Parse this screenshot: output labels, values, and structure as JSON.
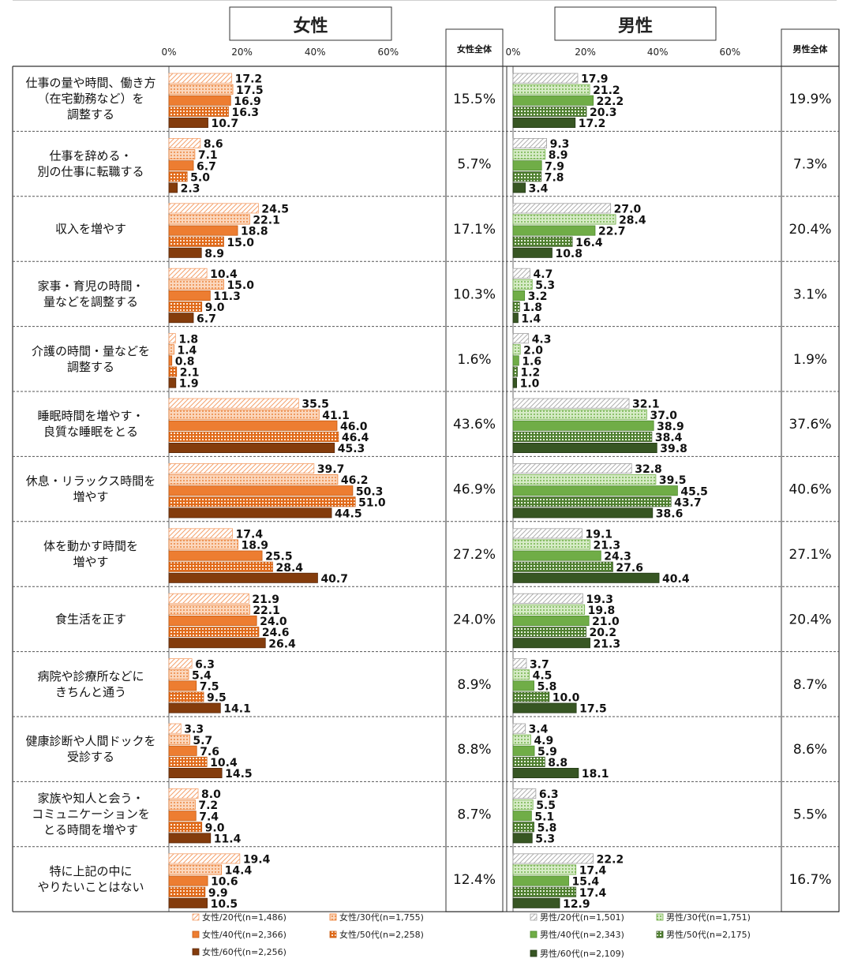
{
  "chart_data": {
    "type": "bar",
    "orientation": "horizontal",
    "panels": [
      {
        "title": "女性",
        "total_header": "女性全体",
        "xticks": [
          "0%",
          "20%",
          "40%",
          "60%"
        ],
        "xlim": [
          0,
          60
        ],
        "series": [
          {
            "name": "女性/20代(n=1,486)",
            "color": "#ffffff",
            "pattern": "diagonal",
            "values": [
              17.2,
              8.6,
              24.5,
              10.4,
              1.8,
              35.5,
              39.7,
              17.4,
              21.9,
              6.3,
              3.3,
              8.0,
              19.4
            ]
          },
          {
            "name": "女性/30代(n=1,755)",
            "color": "#f4b183",
            "pattern": "dots",
            "values": [
              17.5,
              7.1,
              22.1,
              15.0,
              1.4,
              41.1,
              46.2,
              18.9,
              22.1,
              5.4,
              5.7,
              7.2,
              14.4
            ]
          },
          {
            "name": "女性/40代(n=2,366)",
            "color": "#ed7d31",
            "pattern": "solid",
            "values": [
              16.9,
              6.7,
              18.8,
              11.3,
              0.8,
              46.0,
              50.3,
              25.5,
              24.0,
              7.5,
              7.6,
              7.4,
              10.6
            ]
          },
          {
            "name": "女性/50代(n=2,258)",
            "color": "#e07020",
            "pattern": "checker",
            "values": [
              16.3,
              5.0,
              15.0,
              9.0,
              2.1,
              46.4,
              51.0,
              28.4,
              24.6,
              9.5,
              10.4,
              9.0,
              9.9
            ]
          },
          {
            "name": "女性/60代(n=2,256)",
            "color": "#843c0c",
            "pattern": "solid",
            "values": [
              10.7,
              2.3,
              8.9,
              6.7,
              1.9,
              45.3,
              44.5,
              40.7,
              26.4,
              14.1,
              14.5,
              11.4,
              10.5
            ]
          }
        ],
        "totals": [
          "15.5%",
          "5.7%",
          "17.1%",
          "10.3%",
          "1.6%",
          "43.6%",
          "46.9%",
          "27.2%",
          "24.0%",
          "8.9%",
          "8.8%",
          "8.7%",
          "12.4%"
        ]
      },
      {
        "title": "男性",
        "total_header": "男性全体",
        "xticks": [
          "0%",
          "20%",
          "40%",
          "60%"
        ],
        "xlim": [
          0,
          60
        ],
        "series": [
          {
            "name": "男性/20代(n=1,501)",
            "color": "#ffffff",
            "pattern": "diagonal",
            "values": [
              17.9,
              9.3,
              27.0,
              4.7,
              4.3,
              32.1,
              32.8,
              19.1,
              19.3,
              3.7,
              3.4,
              6.3,
              22.2
            ]
          },
          {
            "name": "男性/30代(n=1,751)",
            "color": "#a9d18e",
            "pattern": "dots",
            "values": [
              21.2,
              8.9,
              28.4,
              5.3,
              2.0,
              37.0,
              39.5,
              21.3,
              19.8,
              4.5,
              4.9,
              5.5,
              17.4
            ]
          },
          {
            "name": "男性/40代(n=2,343)",
            "color": "#70ad47",
            "pattern": "solid",
            "values": [
              22.2,
              7.9,
              22.7,
              3.2,
              1.6,
              38.9,
              45.5,
              24.3,
              21.0,
              5.8,
              5.9,
              5.1,
              15.4
            ]
          },
          {
            "name": "男性/50代(n=2,175)",
            "color": "#548235",
            "pattern": "checker",
            "values": [
              20.3,
              7.8,
              16.4,
              1.8,
              1.2,
              38.4,
              43.7,
              27.6,
              20.2,
              10.0,
              8.8,
              5.8,
              17.4
            ]
          },
          {
            "name": "男性/60代(n=2,109)",
            "color": "#375623",
            "pattern": "solid",
            "values": [
              17.2,
              3.4,
              10.8,
              1.4,
              1.0,
              39.8,
              38.6,
              40.4,
              21.3,
              17.5,
              18.1,
              5.3,
              12.9
            ]
          }
        ],
        "totals": [
          "19.9%",
          "7.3%",
          "20.4%",
          "3.1%",
          "1.9%",
          "37.6%",
          "40.6%",
          "27.1%",
          "20.4%",
          "8.7%",
          "8.6%",
          "5.5%",
          "16.7%"
        ]
      }
    ],
    "categories": [
      [
        "仕事の量や時間、働き方",
        "（在宅勤務など）を",
        "調整する"
      ],
      [
        "仕事を辞める・",
        "別の仕事に転職する"
      ],
      [
        "収入を増やす"
      ],
      [
        "家事・育児の時間・",
        "量などを調整する"
      ],
      [
        "介護の時間・量などを",
        "調整する"
      ],
      [
        "睡眠時間を増やす・",
        "良質な睡眠をとる"
      ],
      [
        "休息・リラックス時間を",
        "増やす"
      ],
      [
        "体を動かす時間を",
        "増やす"
      ],
      [
        "食生活を正す"
      ],
      [
        "病院や診療所などに",
        "きちんと通う"
      ],
      [
        "健康診断や人間ドックを",
        "受診する"
      ],
      [
        "家族や知人と会う・",
        "コミュニケーションを",
        "とる時間を増やす"
      ],
      [
        "特に上記の中に",
        "やりたいことはない"
      ]
    ],
    "legend_position": "bottom",
    "grid": false
  }
}
